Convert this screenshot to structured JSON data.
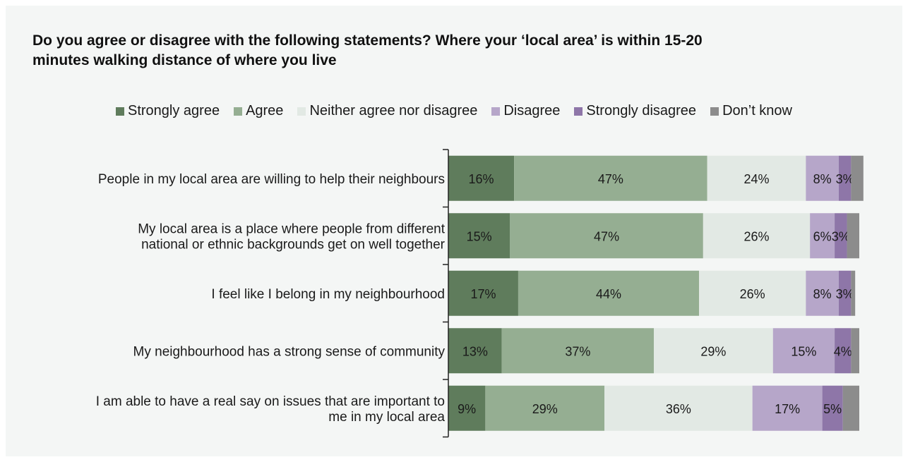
{
  "title": "Do you agree or disagree with the following statements? Where your ‘local area’ is within 15-20 minutes walking distance of where you live",
  "legend": [
    {
      "label": "Strongly agree",
      "color": "#5f7c5c"
    },
    {
      "label": "Agree",
      "color": "#95ae92"
    },
    {
      "label": "Neither agree nor disagree",
      "color": "#e2e9e4"
    },
    {
      "label": "Disagree",
      "color": "#b6a6c9"
    },
    {
      "label": "Strongly disagree",
      "color": "#8e76a8"
    },
    {
      "label": "Don’t know",
      "color": "#8c8c8c"
    }
  ],
  "chart_data": {
    "type": "bar",
    "orientation": "horizontal",
    "stacked": true,
    "title": "Do you agree or disagree with the following statements? Where your ‘local area’ is within 15-20 minutes walking distance of where you live",
    "categories": [
      [
        "People in my local area are willing to help their neighbours"
      ],
      [
        "My local area is a place where people from different",
        "national or ethnic backgrounds get on well together"
      ],
      [
        "I feel like I belong in my neighbourhood"
      ],
      [
        "My neighbourhood has a strong sense of community"
      ],
      [
        "I am able to have a real say on issues that are important to",
        "me in my local area"
      ]
    ],
    "series": [
      {
        "name": "Strongly agree",
        "values": [
          16,
          15,
          17,
          13,
          9
        ],
        "labels": [
          "16%",
          "15%",
          "17%",
          "13%",
          "9%"
        ]
      },
      {
        "name": "Agree",
        "values": [
          47,
          47,
          44,
          37,
          29
        ],
        "labels": [
          "47%",
          "47%",
          "44%",
          "37%",
          "29%"
        ]
      },
      {
        "name": "Neither agree nor disagree",
        "values": [
          24,
          26,
          26,
          29,
          36
        ],
        "labels": [
          "24%",
          "26%",
          "26%",
          "29%",
          "36%"
        ]
      },
      {
        "name": "Disagree",
        "values": [
          8,
          6,
          8,
          15,
          17
        ],
        "labels": [
          "8%",
          "6%",
          "8%",
          "15%",
          "17%"
        ]
      },
      {
        "name": "Strongly disagree",
        "values": [
          3,
          3,
          3,
          4,
          5
        ],
        "labels": [
          "3%",
          "3%",
          "3%",
          "4%",
          "5%"
        ]
      },
      {
        "name": "Don’t know",
        "values": [
          3,
          3,
          1,
          2,
          4
        ],
        "labels": [
          "",
          "",
          "",
          "",
          ""
        ]
      }
    ],
    "xlim": [
      0,
      100
    ],
    "legend_position": "top",
    "grid": false
  }
}
